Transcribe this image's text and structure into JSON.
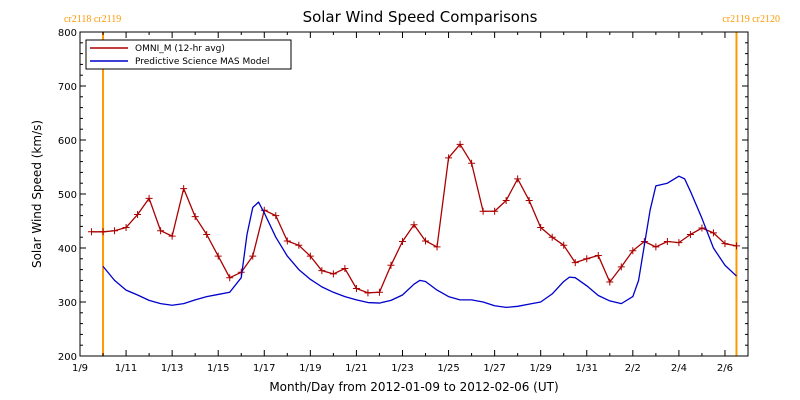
{
  "chart_data": {
    "type": "line",
    "title": "Solar Wind Speed Comparisons",
    "xlabel": "Month/Day from 2012-01-09 to 2012-02-06 (UT)",
    "ylabel": "Solar Wind Speed (km/s)",
    "ylim": [
      200,
      800
    ],
    "xlim": [
      "2012-01-09",
      "2012-02-06"
    ],
    "x_ticks": [
      "1/9",
      "1/11",
      "1/13",
      "1/15",
      "1/17",
      "1/19",
      "1/21",
      "1/23",
      "1/25",
      "1/27",
      "1/29",
      "1/31",
      "2/2",
      "2/4",
      "2/6"
    ],
    "y_ticks": [
      200,
      300,
      400,
      500,
      600,
      700,
      800
    ],
    "grid": false,
    "legend": "top-left",
    "carrington_markers": [
      {
        "label": "cr2118 cr2119",
        "date": "2012-01-10 00:00",
        "side": "left"
      },
      {
        "label": "cr2119 cr2120",
        "date": "2012-02-06 12:00",
        "side": "right"
      }
    ],
    "series": [
      {
        "name": "OMNI_M (12-hr avg)",
        "color": "#aa0000",
        "marker": "plus",
        "points": [
          [
            "2012-01-09 12:00",
            430
          ],
          [
            "2012-01-10 00:00",
            430
          ],
          [
            "2012-01-10 12:00",
            432
          ],
          [
            "2012-01-11 00:00",
            438
          ],
          [
            "2012-01-11 12:00",
            462
          ],
          [
            "2012-01-12 00:00",
            492
          ],
          [
            "2012-01-12 12:00",
            432
          ],
          [
            "2012-01-13 00:00",
            422
          ],
          [
            "2012-01-13 12:00",
            510
          ],
          [
            "2012-01-14 00:00",
            458
          ],
          [
            "2012-01-14 12:00",
            425
          ],
          [
            "2012-01-15 00:00",
            385
          ],
          [
            "2012-01-15 12:00",
            345
          ],
          [
            "2012-01-16 00:00",
            355
          ],
          [
            "2012-01-16 12:00",
            385
          ],
          [
            "2012-01-17 00:00",
            470
          ],
          [
            "2012-01-17 12:00",
            460
          ],
          [
            "2012-01-18 00:00",
            413
          ],
          [
            "2012-01-18 12:00",
            405
          ],
          [
            "2012-01-19 00:00",
            385
          ],
          [
            "2012-01-19 12:00",
            358
          ],
          [
            "2012-01-20 00:00",
            352
          ],
          [
            "2012-01-20 12:00",
            362
          ],
          [
            "2012-01-21 00:00",
            325
          ],
          [
            "2012-01-21 12:00",
            317
          ],
          [
            "2012-01-22 00:00",
            318
          ],
          [
            "2012-01-22 12:00",
            368
          ],
          [
            "2012-01-23 00:00",
            412
          ],
          [
            "2012-01-23 12:00",
            443
          ],
          [
            "2012-01-24 00:00",
            413
          ],
          [
            "2012-01-24 12:00",
            402
          ],
          [
            "2012-01-25 00:00",
            567
          ],
          [
            "2012-01-25 12:00",
            592
          ],
          [
            "2012-01-26 00:00",
            557
          ],
          [
            "2012-01-26 12:00",
            468
          ],
          [
            "2012-01-27 00:00",
            468
          ],
          [
            "2012-01-27 12:00",
            488
          ],
          [
            "2012-01-28 00:00",
            528
          ],
          [
            "2012-01-28 12:00",
            488
          ],
          [
            "2012-01-29 00:00",
            438
          ],
          [
            "2012-01-29 12:00",
            420
          ],
          [
            "2012-01-30 00:00",
            405
          ],
          [
            "2012-01-30 12:00",
            373
          ],
          [
            "2012-01-31 00:00",
            380
          ],
          [
            "2012-01-31 12:00",
            386
          ],
          [
            "2012-02-01 00:00",
            337
          ],
          [
            "2012-02-01 12:00",
            365
          ],
          [
            "2012-02-02 00:00",
            395
          ],
          [
            "2012-02-02 12:00",
            412
          ],
          [
            "2012-02-03 00:00",
            402
          ],
          [
            "2012-02-03 12:00",
            412
          ],
          [
            "2012-02-04 00:00",
            410
          ],
          [
            "2012-02-04 12:00",
            425
          ],
          [
            "2012-02-05 00:00",
            437
          ],
          [
            "2012-02-05 12:00",
            428
          ],
          [
            "2012-02-06 00:00",
            408
          ],
          [
            "2012-02-06 12:00",
            404
          ]
        ]
      },
      {
        "name": "Predictive Science MAS Model",
        "color": "#0000cc",
        "marker": "none",
        "points": [
          [
            "2012-01-10 00:00",
            366
          ],
          [
            "2012-01-10 12:00",
            340
          ],
          [
            "2012-01-11 00:00",
            322
          ],
          [
            "2012-01-11 12:00",
            313
          ],
          [
            "2012-01-12 00:00",
            303
          ],
          [
            "2012-01-12 12:00",
            297
          ],
          [
            "2012-01-13 00:00",
            294
          ],
          [
            "2012-01-13 12:00",
            297
          ],
          [
            "2012-01-14 00:00",
            304
          ],
          [
            "2012-01-14 12:00",
            310
          ],
          [
            "2012-01-15 00:00",
            314
          ],
          [
            "2012-01-15 12:00",
            318
          ],
          [
            "2012-01-16 00:00",
            345
          ],
          [
            "2012-01-16 06:00",
            425
          ],
          [
            "2012-01-16 12:00",
            475
          ],
          [
            "2012-01-16 18:00",
            485
          ],
          [
            "2012-01-17 00:00",
            465
          ],
          [
            "2012-01-17 12:00",
            420
          ],
          [
            "2012-01-18 00:00",
            385
          ],
          [
            "2012-01-18 12:00",
            360
          ],
          [
            "2012-01-19 00:00",
            342
          ],
          [
            "2012-01-19 12:00",
            328
          ],
          [
            "2012-01-20 00:00",
            318
          ],
          [
            "2012-01-20 12:00",
            310
          ],
          [
            "2012-01-21 00:00",
            304
          ],
          [
            "2012-01-21 12:00",
            299
          ],
          [
            "2012-01-22 00:00",
            298
          ],
          [
            "2012-01-22 12:00",
            303
          ],
          [
            "2012-01-23 00:00",
            313
          ],
          [
            "2012-01-23 12:00",
            333
          ],
          [
            "2012-01-23 18:00",
            340
          ],
          [
            "2012-01-24 00:00",
            338
          ],
          [
            "2012-01-24 12:00",
            322
          ],
          [
            "2012-01-25 00:00",
            310
          ],
          [
            "2012-01-25 12:00",
            304
          ],
          [
            "2012-01-26 00:00",
            304
          ],
          [
            "2012-01-26 12:00",
            300
          ],
          [
            "2012-01-27 00:00",
            293
          ],
          [
            "2012-01-27 12:00",
            290
          ],
          [
            "2012-01-28 00:00",
            292
          ],
          [
            "2012-01-28 12:00",
            296
          ],
          [
            "2012-01-29 00:00",
            300
          ],
          [
            "2012-01-29 12:00",
            315
          ],
          [
            "2012-01-30 00:00",
            338
          ],
          [
            "2012-01-30 06:00",
            346
          ],
          [
            "2012-01-30 12:00",
            345
          ],
          [
            "2012-01-31 00:00",
            330
          ],
          [
            "2012-01-31 12:00",
            312
          ],
          [
            "2012-02-01 00:00",
            302
          ],
          [
            "2012-02-01 12:00",
            297
          ],
          [
            "2012-02-02 00:00",
            310
          ],
          [
            "2012-02-02 06:00",
            340
          ],
          [
            "2012-02-02 18:00",
            470
          ],
          [
            "2012-02-03 00:00",
            515
          ],
          [
            "2012-02-03 12:00",
            520
          ],
          [
            "2012-02-04 00:00",
            533
          ],
          [
            "2012-02-04 06:00",
            528
          ],
          [
            "2012-02-04 12:00",
            505
          ],
          [
            "2012-02-05 00:00",
            455
          ],
          [
            "2012-02-05 12:00",
            400
          ],
          [
            "2012-02-06 00:00",
            368
          ],
          [
            "2012-02-06 12:00",
            348
          ]
        ]
      }
    ]
  }
}
